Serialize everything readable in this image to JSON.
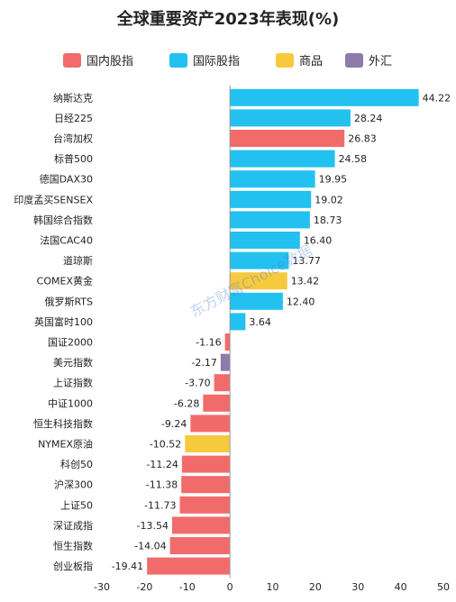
{
  "chart_data": {
    "type": "bar",
    "orientation": "horizontal",
    "title": "全球重要资产2023年表现(%)",
    "watermark": "东方财富Choice数据",
    "legend": [
      {
        "name": "国内股指",
        "color": "#f26b6b"
      },
      {
        "name": "国际股指",
        "color": "#22c1f0"
      },
      {
        "name": "商品",
        "color": "#f7ca3e"
      },
      {
        "name": "外汇",
        "color": "#8c7bab"
      }
    ],
    "categories": [
      "纳斯达克",
      "日经225",
      "台湾加权",
      "标普500",
      "德国DAX30",
      "印度孟买SENSEX",
      "韩国综合指数",
      "法国CAC40",
      "道琼斯",
      "COMEX黄金",
      "俄罗斯RTS",
      "英国富时100",
      "国证2000",
      "美元指数",
      "上证指数",
      "中证1000",
      "恒生科技指数",
      "NYMEX原油",
      "科创50",
      "沪深300",
      "上证50",
      "深证成指",
      "恒生指数",
      "创业板指"
    ],
    "values": [
      44.22,
      28.24,
      26.83,
      24.58,
      19.95,
      19.02,
      18.73,
      16.4,
      13.77,
      13.42,
      12.4,
      3.64,
      -1.16,
      -2.17,
      -3.7,
      -6.28,
      -9.24,
      -10.52,
      -11.24,
      -11.38,
      -11.73,
      -13.54,
      -14.04,
      -19.41
    ],
    "value_labels": [
      "44.22",
      "28.24",
      "26.83",
      "24.58",
      "19.95",
      "19.02",
      "18.73",
      "16.40",
      "13.77",
      "13.42",
      "12.40",
      "3.64",
      "-1.16",
      "-2.17",
      "-3.70",
      "-6.28",
      "-9.24",
      "-10.52",
      "-11.24",
      "-11.38",
      "-11.73",
      "-13.54",
      "-14.04",
      "-19.41"
    ],
    "groups": [
      "国际股指",
      "国际股指",
      "国内股指",
      "国际股指",
      "国际股指",
      "国际股指",
      "国际股指",
      "国际股指",
      "国际股指",
      "商品",
      "国际股指",
      "国际股指",
      "国内股指",
      "外汇",
      "国内股指",
      "国内股指",
      "国内股指",
      "商品",
      "国内股指",
      "国内股指",
      "国内股指",
      "国内股指",
      "国内股指",
      "国内股指"
    ],
    "xlim": [
      -30,
      50
    ],
    "xticks": [
      -30,
      -20,
      -10,
      0,
      10,
      20,
      30,
      40,
      50
    ],
    "grid": false,
    "legend_position": "top"
  }
}
